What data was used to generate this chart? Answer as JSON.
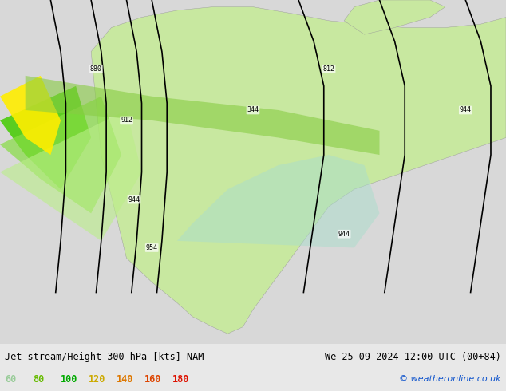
{
  "title_left": "Jet stream/Height 300 hPa [kts] NAM",
  "title_right": "We 25-09-2024 12:00 UTC (00+84)",
  "copyright": "© weatheronline.co.uk",
  "legend_values": [
    60,
    80,
    100,
    120,
    140,
    160,
    180
  ],
  "legend_colors": [
    "#99ff99",
    "#66dd00",
    "#00aa00",
    "#ffcc00",
    "#ff8800",
    "#ff4400",
    "#ff0000"
  ],
  "background_color": "#e8e8e8",
  "fig_width": 6.34,
  "fig_height": 4.9,
  "dpi": 100
}
